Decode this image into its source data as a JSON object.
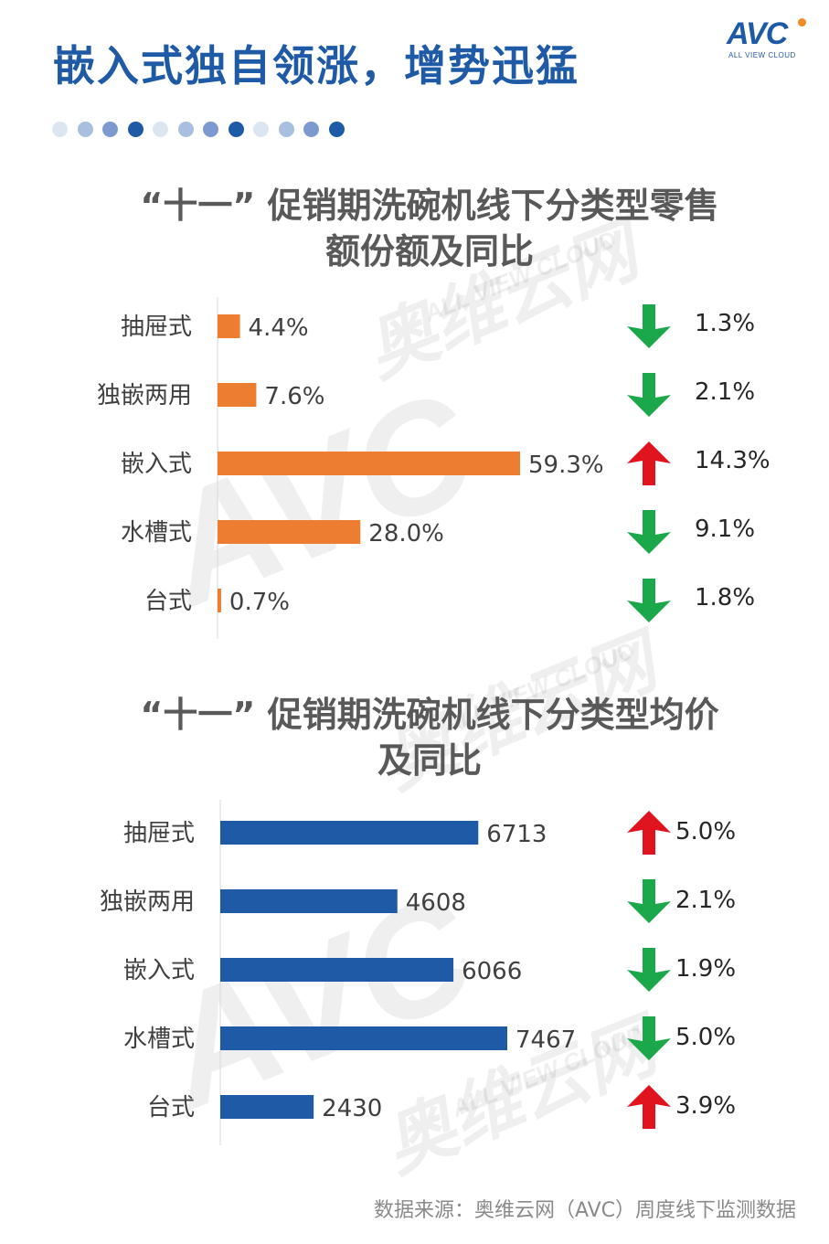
{
  "header": {
    "title": "嵌入式独自领涨，增势迅猛",
    "logo_main": "AVC",
    "logo_sub": "ALL VIEW CLOUD"
  },
  "decor_dots": [
    "#dce6f3",
    "#a9bfe0",
    "#7d9ad0",
    "#1f5aa6",
    "#dce6f3",
    "#a9bfe0",
    "#7d9ad0",
    "#1f5aa6",
    "#dce6f3",
    "#a9bfe0",
    "#7d9ad0",
    "#1f5aa6"
  ],
  "watermark": {
    "cn": "奥维云网",
    "en": "ALL VIEW CLOUD",
    "mark": "AVC"
  },
  "colors": {
    "orange": "#ed7d31",
    "blue": "#1f5aa6",
    "up": "#e0141e",
    "down": "#1aa84b"
  },
  "chart_data": [
    {
      "type": "bar",
      "orientation": "horizontal",
      "title": "“十一”  促销期洗碗机线下分类型零售额份额及同比",
      "title_lines": [
        "“十一”  促销期洗碗机线下分类型零售",
        "额份额及同比"
      ],
      "categories": [
        "抽屉式",
        "独嵌两用",
        "嵌入式",
        "水槽式",
        "台式"
      ],
      "values": [
        4.4,
        7.6,
        59.3,
        28.0,
        0.7
      ],
      "labels": [
        "4.4%",
        "7.6%",
        "59.3%",
        "28.0%",
        "0.7%"
      ],
      "yoy": [
        {
          "dir": "down",
          "label": "1.3%"
        },
        {
          "dir": "down",
          "label": "2.1%"
        },
        {
          "dir": "up",
          "label": "14.3%"
        },
        {
          "dir": "down",
          "label": "9.1%"
        },
        {
          "dir": "down",
          "label": "1.8%"
        }
      ],
      "xlim": [
        0,
        59.3
      ],
      "color": "#ed7d31",
      "grid": false,
      "legend": "none"
    },
    {
      "type": "bar",
      "orientation": "horizontal",
      "title": "“十一”  促销期洗碗机线下分类型均价及同比",
      "title_lines": [
        "“十一”  促销期洗碗机线下分类型均价",
        "及同比"
      ],
      "categories": [
        "抽屉式",
        "独嵌两用",
        "嵌入式",
        "水槽式",
        "台式"
      ],
      "values": [
        6713,
        4608,
        6066,
        7467,
        2430
      ],
      "labels": [
        "6713",
        "4608",
        "6066",
        "7467",
        "2430"
      ],
      "yoy": [
        {
          "dir": "up",
          "label": "5.0%"
        },
        {
          "dir": "down",
          "label": "2.1%"
        },
        {
          "dir": "down",
          "label": "1.9%"
        },
        {
          "dir": "down",
          "label": "5.0%"
        },
        {
          "dir": "up",
          "label": "3.9%"
        }
      ],
      "xlim": [
        0,
        7467
      ],
      "color": "#1f5aa6",
      "grid": false,
      "legend": "none"
    }
  ],
  "footer": {
    "source": "数据来源：奥维云网（AVC）周度线下监测数据"
  }
}
